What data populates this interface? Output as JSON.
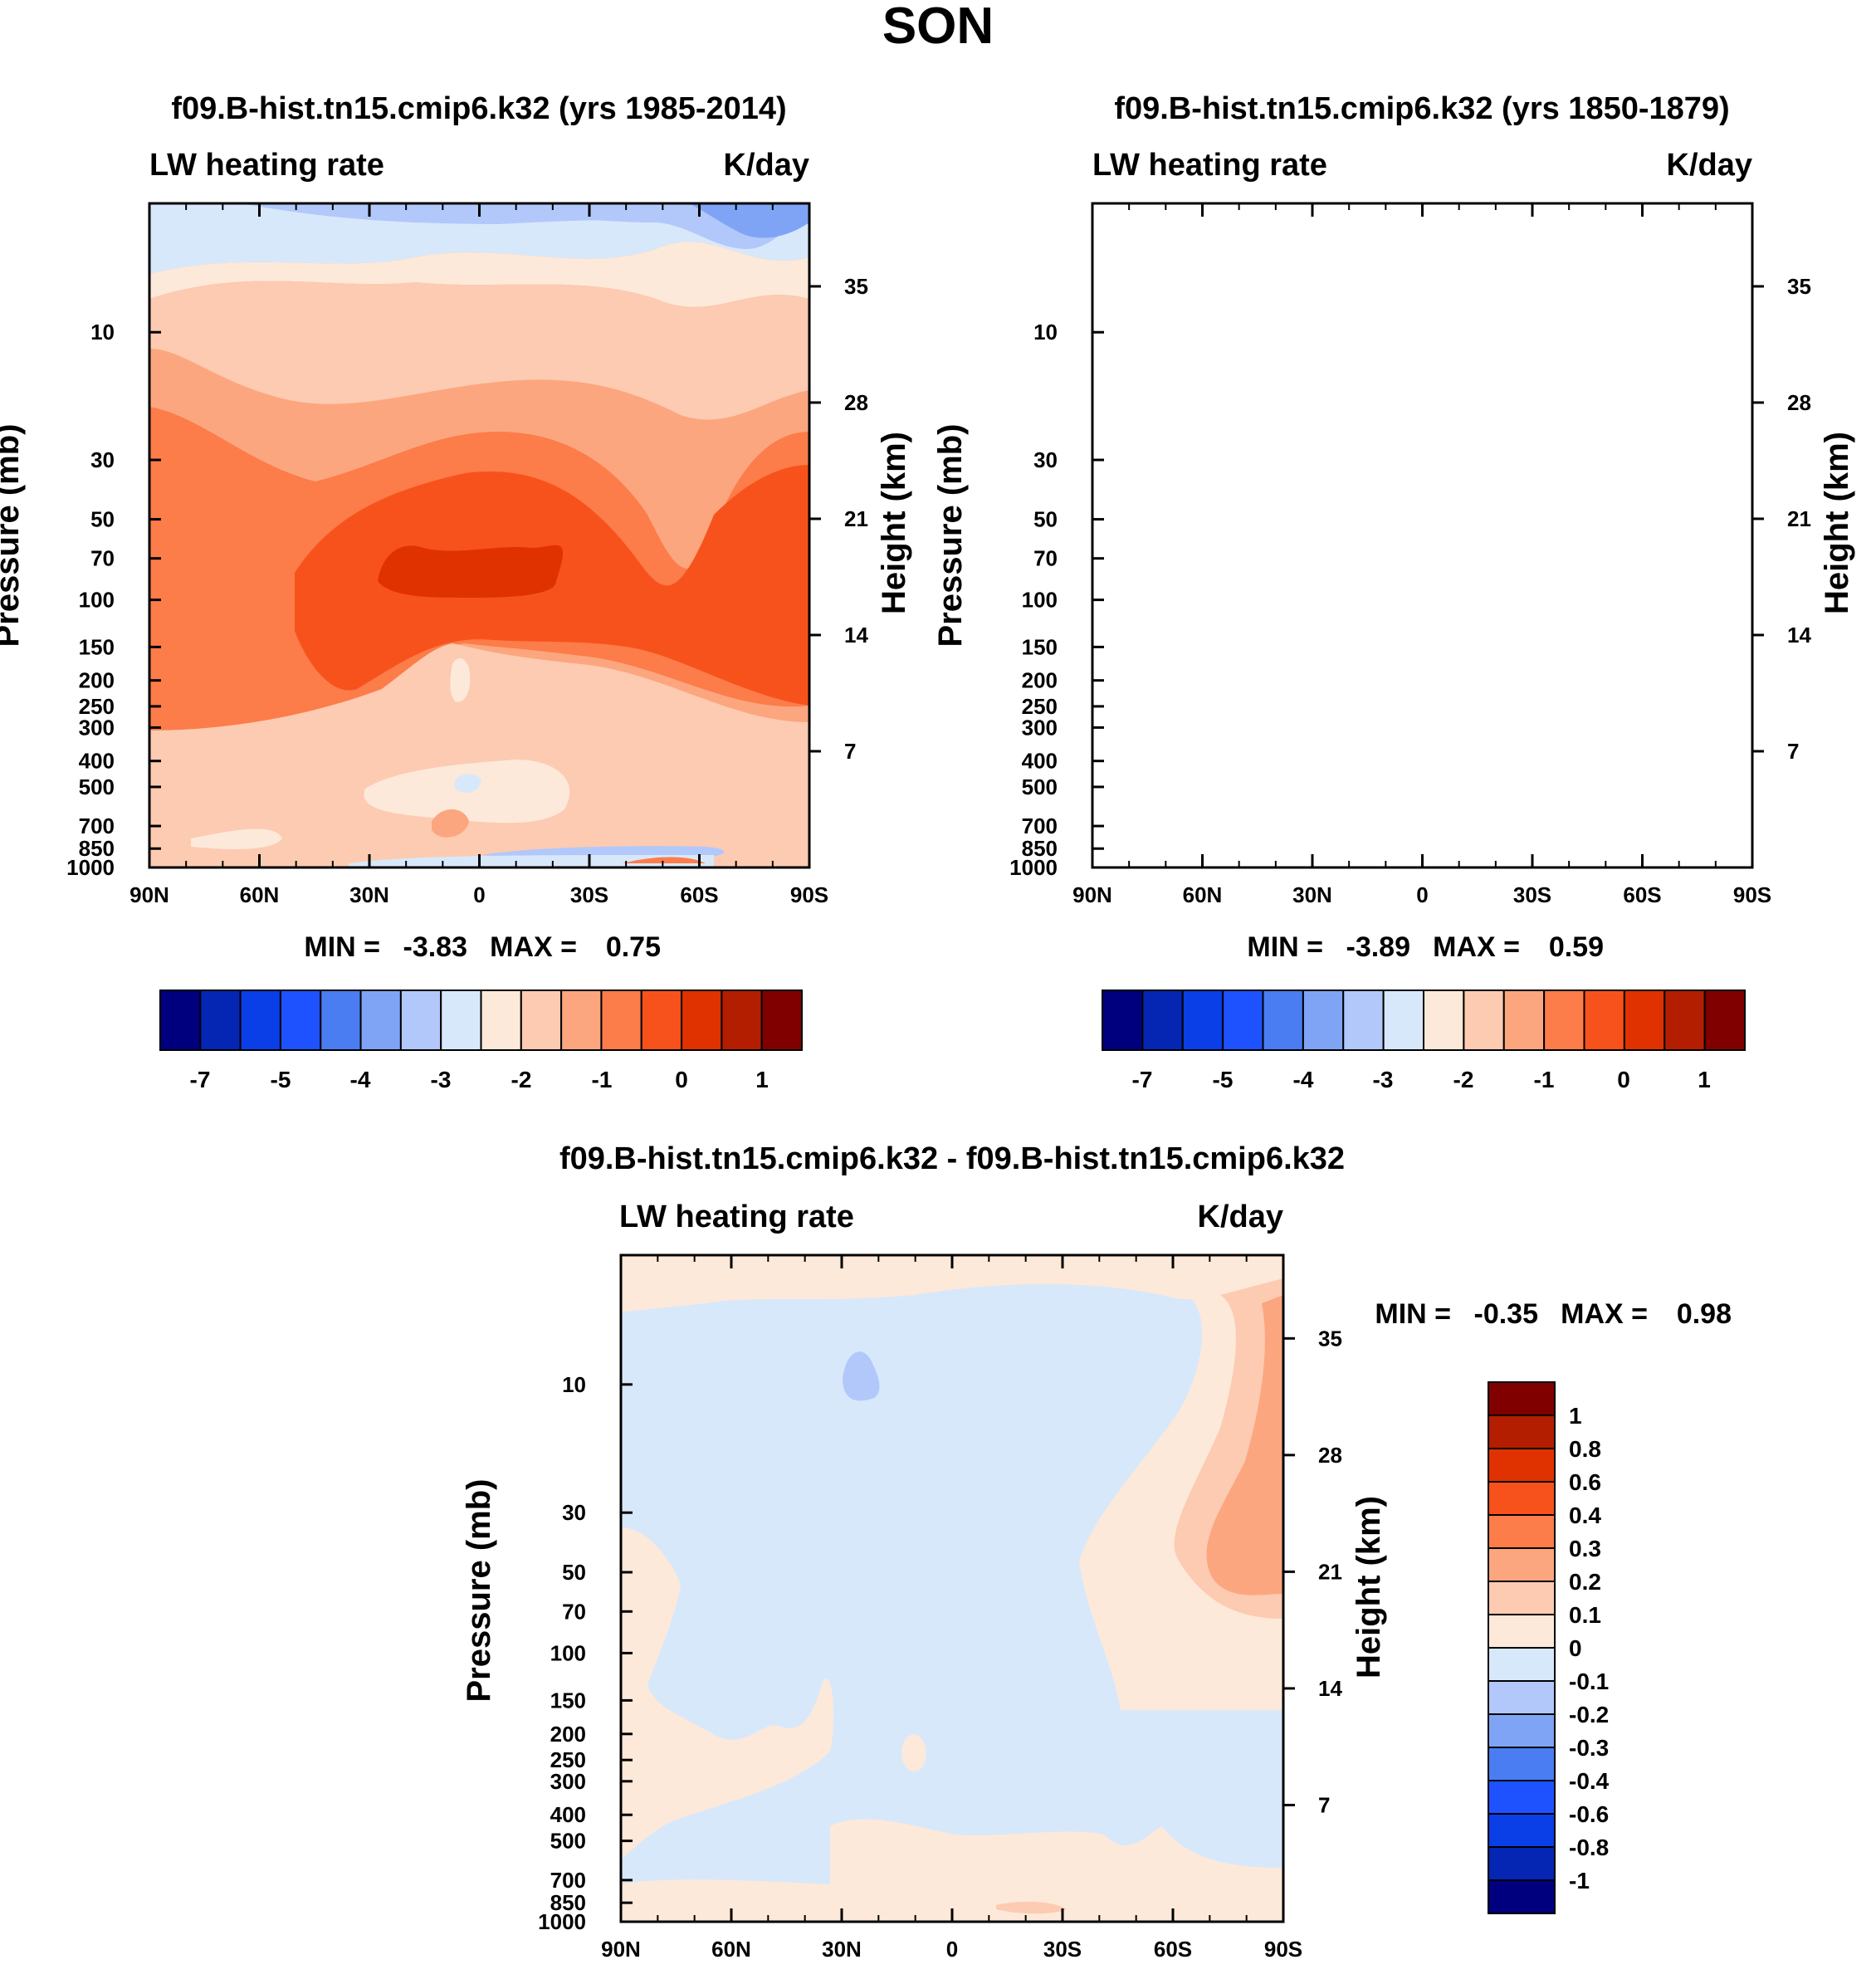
{
  "figure_title": "SON",
  "chart_data": [
    {
      "type": "heatmap",
      "title": "f09.B-hist.tn15.cmip6.k32 (yrs 1985-2014)",
      "left_label": "LW heating rate",
      "right_label": "K/day",
      "xlabel": "",
      "ylabel": "Pressure (mb)",
      "y2label": "Height (km)",
      "x_ticks": [
        "90N",
        "60N",
        "30N",
        "0",
        "30S",
        "60S",
        "90S"
      ],
      "y_ticks": [
        "10",
        "30",
        "50",
        "70",
        "100",
        "150",
        "200",
        "250",
        "300",
        "400",
        "500",
        "700",
        "850",
        "1000"
      ],
      "y2_ticks": [
        "35",
        "28",
        "21",
        "14",
        "7"
      ],
      "min_label": "MIN =",
      "min_value": "-3.83",
      "max_label": "MAX =",
      "max_value": "0.75",
      "colorbar_labels": [
        "-7",
        "-5",
        "-4",
        "-3",
        "-2",
        "-1",
        "0",
        "1"
      ]
    },
    {
      "type": "heatmap",
      "title": "f09.B-hist.tn15.cmip6.k32 (yrs 1850-1879)",
      "left_label": "LW heating rate",
      "right_label": "K/day",
      "xlabel": "",
      "ylabel": "Pressure (mb)",
      "y2label": "Height (km)",
      "x_ticks": [
        "90N",
        "60N",
        "30N",
        "0",
        "30S",
        "60S",
        "90S"
      ],
      "y_ticks": [
        "10",
        "30",
        "50",
        "70",
        "100",
        "150",
        "200",
        "250",
        "300",
        "400",
        "500",
        "700",
        "850",
        "1000"
      ],
      "y2_ticks": [
        "35",
        "28",
        "21",
        "14",
        "7"
      ],
      "min_label": "MIN =",
      "min_value": "-3.89",
      "max_label": "MAX =",
      "max_value": "0.59",
      "colorbar_labels": [
        "-7",
        "-5",
        "-4",
        "-3",
        "-2",
        "-1",
        "0",
        "1"
      ]
    },
    {
      "type": "heatmap",
      "title": "f09.B-hist.tn15.cmip6.k32 - f09.B-hist.tn15.cmip6.k32",
      "left_label": "LW heating rate",
      "right_label": "K/day",
      "xlabel": "",
      "ylabel": "Pressure (mb)",
      "y2label": "Height (km)",
      "x_ticks": [
        "90N",
        "60N",
        "30N",
        "0",
        "30S",
        "60S",
        "90S"
      ],
      "y_ticks": [
        "10",
        "30",
        "50",
        "70",
        "100",
        "150",
        "200",
        "250",
        "300",
        "400",
        "500",
        "700",
        "850",
        "1000"
      ],
      "y2_ticks": [
        "35",
        "28",
        "21",
        "14",
        "7"
      ],
      "min_label": "MIN =",
      "min_value": "-0.35",
      "max_label": "MAX =",
      "max_value": "0.98",
      "colorbar_labels": [
        "1",
        "0.8",
        "0.6",
        "0.4",
        "0.3",
        "0.2",
        "0.1",
        "0",
        "-0.1",
        "-0.2",
        "-0.3",
        "-0.4",
        "-0.6",
        "-0.8",
        "-1"
      ]
    }
  ],
  "colors": {
    "abs_levels": [
      "#00007f",
      "#0426b3",
      "#0a3ee6",
      "#1f52ff",
      "#4a7df2",
      "#7fa4f6",
      "#b2c8fb",
      "#d8e8fb",
      "#fde9d9",
      "#fccbb1",
      "#fca67f",
      "#fc7c4a",
      "#f8521c",
      "#e03200",
      "#b31e00",
      "#800000"
    ],
    "diff_levels": [
      "#800000",
      "#b31e00",
      "#e03200",
      "#f8521c",
      "#fc7c4a",
      "#fca67f",
      "#fccbb1",
      "#fde9d9",
      "#d8e8fb",
      "#b2c8fb",
      "#7fa4f6",
      "#4a7df2",
      "#1f52ff",
      "#0a3ee6",
      "#0426b3",
      "#00007f"
    ]
  }
}
